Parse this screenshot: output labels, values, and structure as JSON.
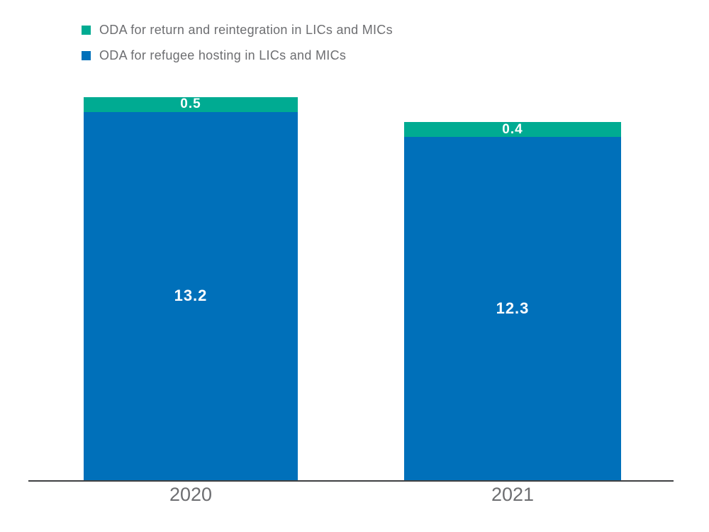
{
  "chart_data": {
    "type": "bar",
    "stacked": true,
    "title": "",
    "xlabel": "",
    "ylabel": "",
    "categories": [
      "2020",
      "2021"
    ],
    "series": [
      {
        "name": "ODA for return and reintegration in LICs and MICs",
        "color": "#00AB92",
        "values": [
          0.5,
          0.4
        ]
      },
      {
        "name": "ODA for refugee hosting in LICs and MICs",
        "color": "#0070BA",
        "values": [
          13.2,
          12.3
        ]
      }
    ],
    "totals": [
      13.7,
      12.7
    ],
    "value_label_color": "#ffffff",
    "legend_position": "top-left",
    "grid": false,
    "axis_line_color": "#3f4042",
    "tick_label_color": "#6d6e71"
  }
}
